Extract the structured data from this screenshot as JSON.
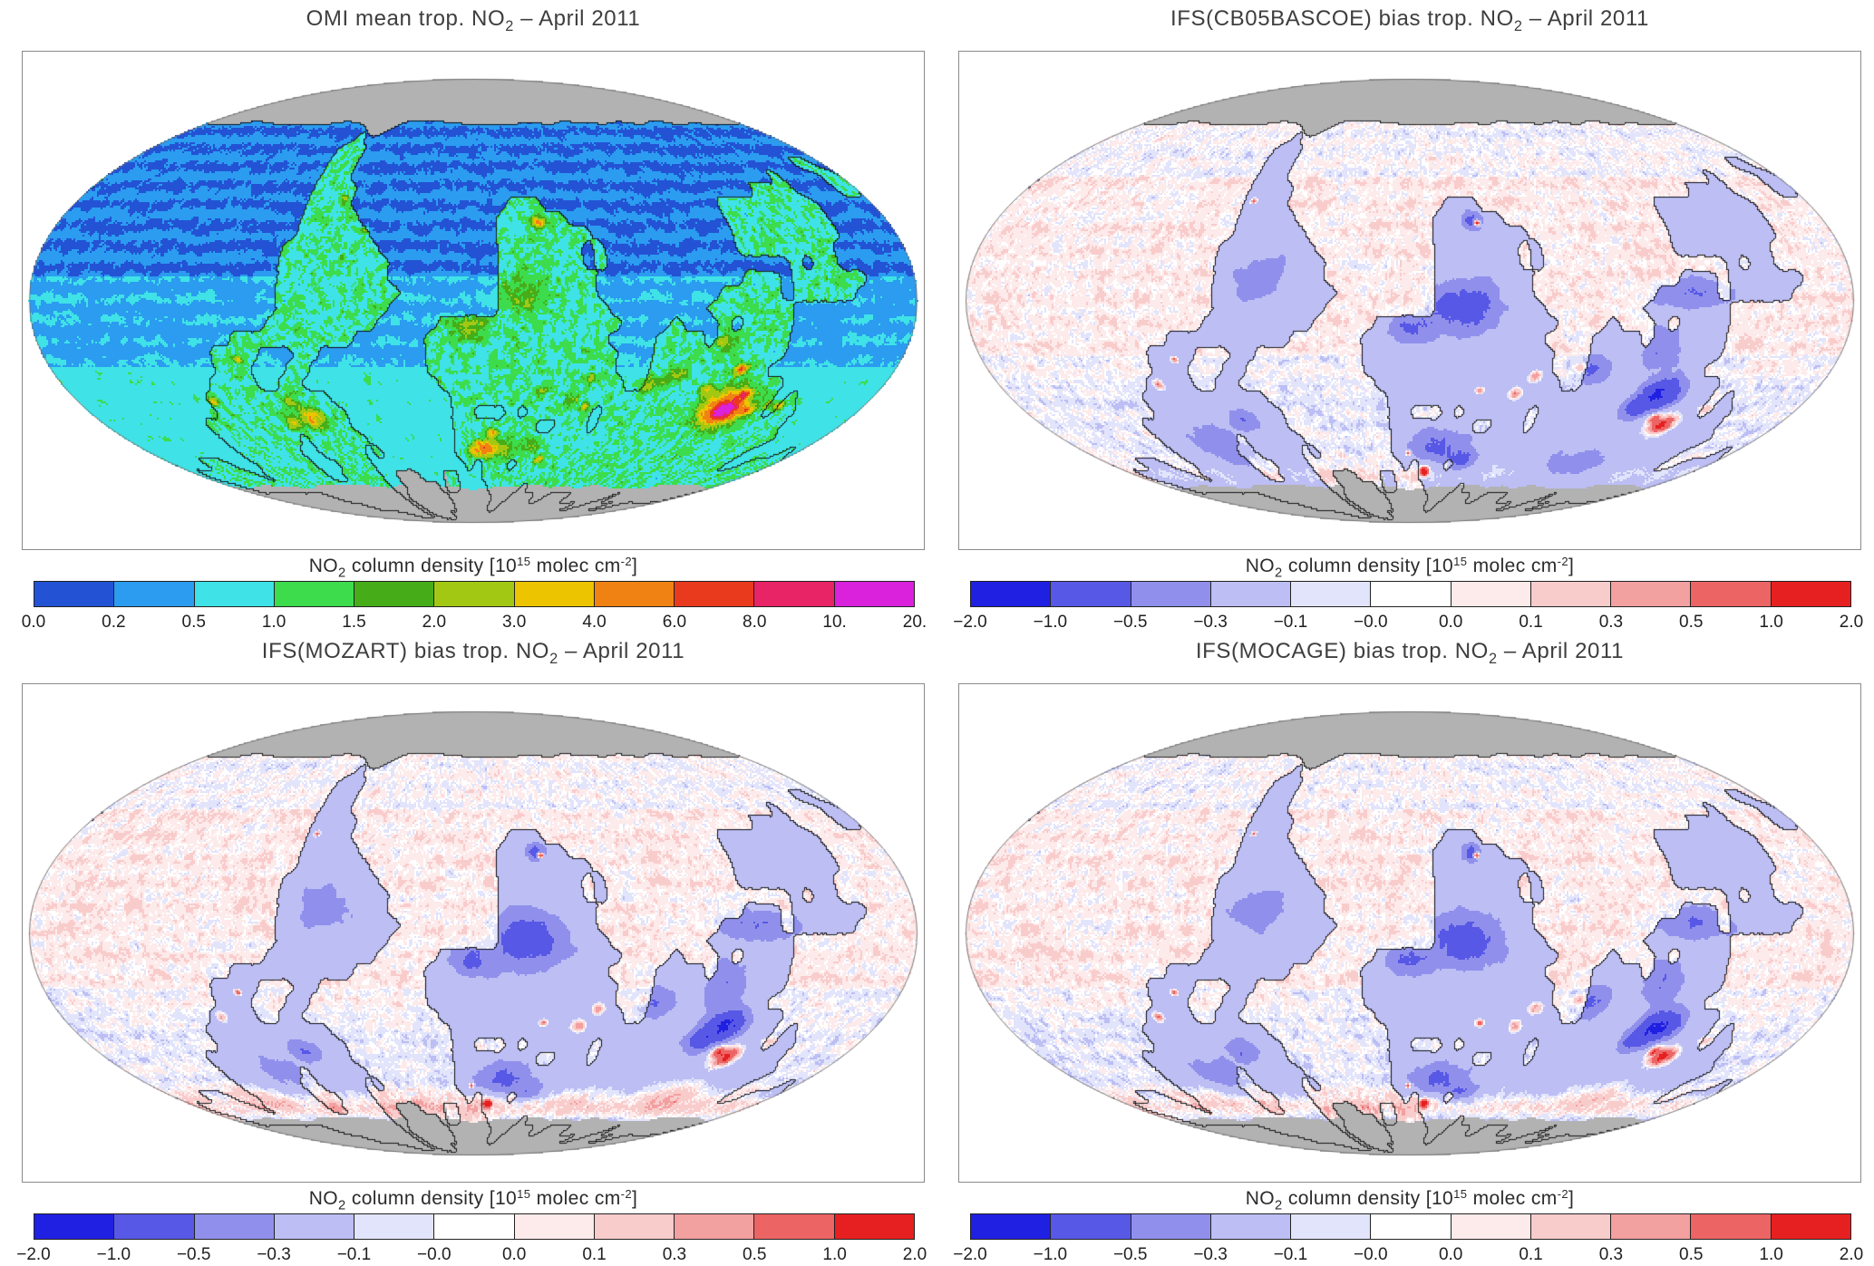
{
  "figure": {
    "background": "#ffffff",
    "nodata_color": "#b2b2b2",
    "coast_color": "#141414",
    "colorbar_label": {
      "pre": "NO",
      "sub": "2",
      "mid": " column density [10",
      "sup": "15",
      "mid2": " molec cm",
      "sup2": "-2",
      "post": "]"
    }
  },
  "panels": [
    {
      "id": "omi",
      "title": {
        "pre": "OMI mean trop. NO",
        "sub": "2",
        "post": " – April 2011"
      },
      "colorbar": {
        "ticks": [
          "0.0",
          "0.2",
          "0.5",
          "1.0",
          "1.5",
          "2.0",
          "3.0",
          "4.0",
          "6.0",
          "8.0",
          "10.",
          "20."
        ],
        "levels": [
          0.0,
          0.2,
          0.5,
          1.0,
          1.5,
          2.0,
          3.0,
          4.0,
          6.0,
          8.0,
          10.0,
          20.0
        ],
        "colors": [
          "#2353d4",
          "#2b9cf0",
          "#3fe2e6",
          "#3cdc4d",
          "#46ad19",
          "#a3c814",
          "#ecc400",
          "#f08214",
          "#ea3a1e",
          "#e82366",
          "#da22dd"
        ]
      },
      "map": {
        "type": "omi"
      }
    },
    {
      "id": "cb05",
      "title": {
        "pre": "IFS(CB05BASCOE) bias trop. NO",
        "sub": "2",
        "post": " – April 2011"
      },
      "colorbar": {
        "ticks": [
          "−2.0",
          "−1.0",
          "−0.5",
          "−0.3",
          "−0.1",
          "−0.0",
          "0.0",
          "0.1",
          "0.3",
          "0.5",
          "1.0",
          "2.0"
        ],
        "levels": [
          -2.0,
          -1.0,
          -0.5,
          -0.3,
          -0.1,
          -0.0,
          0.0,
          0.1,
          0.3,
          0.5,
          1.0,
          2.0
        ],
        "colors": [
          "#2020e2",
          "#5858e6",
          "#9090ec",
          "#bcbef4",
          "#e2e4fb",
          "#ffffff",
          "#fdeaea",
          "#f9cccc",
          "#f3a0a0",
          "#ec6464",
          "#e62020"
        ]
      },
      "map": {
        "type": "bias"
      }
    },
    {
      "id": "mozart",
      "title": {
        "pre": "IFS(MOZART) bias trop. NO",
        "sub": "2",
        "post": " – April 2011"
      },
      "colorbar": {
        "ticks": [
          "−2.0",
          "−1.0",
          "−0.5",
          "−0.3",
          "−0.1",
          "−0.0",
          "0.0",
          "0.1",
          "0.3",
          "0.5",
          "1.0",
          "2.0"
        ],
        "levels": [
          -2.0,
          -1.0,
          -0.5,
          -0.3,
          -0.1,
          -0.0,
          0.0,
          0.1,
          0.3,
          0.5,
          1.0,
          2.0
        ],
        "colors": [
          "#2020e2",
          "#5858e6",
          "#9090ec",
          "#bcbef4",
          "#e2e4fb",
          "#ffffff",
          "#fdeaea",
          "#f9cccc",
          "#f3a0a0",
          "#ec6464",
          "#e62020"
        ]
      },
      "map": {
        "type": "bias"
      }
    },
    {
      "id": "mocage",
      "title": {
        "pre": "IFS(MOCAGE) bias trop. NO",
        "sub": "2",
        "post": " – April 2011"
      },
      "colorbar": {
        "ticks": [
          "−2.0",
          "−1.0",
          "−0.5",
          "−0.3",
          "−0.1",
          "−0.0",
          "0.0",
          "0.1",
          "0.3",
          "0.5",
          "1.0",
          "2.0"
        ],
        "levels": [
          -2.0,
          -1.0,
          -0.5,
          -0.3,
          -0.1,
          -0.0,
          0.0,
          0.1,
          0.3,
          0.5,
          1.0,
          2.0
        ],
        "colors": [
          "#2020e2",
          "#5858e6",
          "#9090ec",
          "#bcbef4",
          "#e2e4fb",
          "#ffffff",
          "#fdeaea",
          "#f9cccc",
          "#f3a0a0",
          "#ec6464",
          "#e62020"
        ]
      },
      "map": {
        "type": "bias"
      }
    }
  ],
  "chart_data": [
    {
      "type": "heatmap",
      "chart": "global map, Mollweide projection",
      "title": "OMI mean trop. NO2 – April 2011",
      "variable": "NO2 tropospheric column density",
      "units": "10^15 molec cm^-2",
      "levels": [
        0.0,
        0.2,
        0.5,
        1.0,
        1.5,
        2.0,
        3.0,
        4.0,
        6.0,
        8.0,
        10.0,
        20.0
      ],
      "palette": [
        "#2353d4",
        "#2b9cf0",
        "#3fe2e6",
        "#3cdc4d",
        "#46ad19",
        "#a3c814",
        "#ecc400",
        "#f08214",
        "#ea3a1e",
        "#e82366",
        "#da22dd"
      ],
      "no_data_color": "#b2b2b2",
      "legend_position": "bottom",
      "notable_features": [
        "maximum values >10 over eastern China (Beijing–Shanghai region)",
        "elevated values 2–6 over western/central Europe, eastern USA, South Korea and Japan",
        "enhanced values 1–3 over central/western Africa, northern India, Middle East and South African Highveld",
        "background oceans 0.0–1.0, lowest (<0.2) over Southern Hemisphere oceans",
        "gray = no data over the Arctic cap, Greenland and Antarctica"
      ]
    },
    {
      "type": "heatmap",
      "chart": "global map, Mollweide projection",
      "title": "IFS(CB05BASCOE) bias trop. NO2 – April 2011",
      "variable": "model minus OMI NO2 tropospheric column bias",
      "units": "10^15 molec cm^-2",
      "levels": [
        -2.0,
        -1.0,
        -0.5,
        -0.3,
        -0.1,
        -0.0,
        0.0,
        0.1,
        0.3,
        0.5,
        1.0,
        2.0
      ],
      "palette": [
        "#2020e2",
        "#5858e6",
        "#9090ec",
        "#bcbef4",
        "#e2e4fb",
        "#ffffff",
        "#fdeaea",
        "#f9cccc",
        "#f3a0a0",
        "#ec6464",
        "#e62020"
      ],
      "no_data_color": "#b2b2b2",
      "legend_position": "bottom",
      "notable_features": [
        "predominantly negative bias (blue) over central Africa, Europe, India, Southeast Asia and China",
        "strong positive bias (red) spots over southern Norway, northeastern China and Middle East cities",
        "near-zero bias (white) over most oceans with weak positive (pink) patches in the tropics"
      ]
    },
    {
      "type": "heatmap",
      "chart": "global map, Mollweide projection",
      "title": "IFS(MOZART) bias trop. NO2 – April 2011",
      "variable": "model minus OMI NO2 tropospheric column bias",
      "units": "10^15 molec cm^-2",
      "levels": [
        -2.0,
        -1.0,
        -0.5,
        -0.3,
        -0.1,
        -0.0,
        0.0,
        0.1,
        0.3,
        0.5,
        1.0,
        2.0
      ],
      "palette": [
        "#2020e2",
        "#5858e6",
        "#9090ec",
        "#bcbef4",
        "#e2e4fb",
        "#ffffff",
        "#fdeaea",
        "#f9cccc",
        "#f3a0a0",
        "#ec6464",
        "#e62020"
      ],
      "no_data_color": "#b2b2b2",
      "legend_position": "bottom",
      "notable_features": [
        "negative bias (blue) over central Africa, Europe and eastern China",
        "positive bias (red/pink) band across high northern latitudes (Siberia, northern Canada, Scandinavia)",
        "strong red spot over southern Norway and northeastern China",
        "near-zero bias over most oceans"
      ]
    },
    {
      "type": "heatmap",
      "chart": "global map, Mollweide projection",
      "title": "IFS(MOCAGE) bias trop. NO2 – April 2011",
      "variable": "model minus OMI NO2 tropospheric column bias",
      "units": "10^15 molec cm^-2",
      "levels": [
        -2.0,
        -1.0,
        -0.5,
        -0.3,
        -0.1,
        -0.0,
        0.0,
        0.1,
        0.3,
        0.5,
        1.0,
        2.0
      ],
      "palette": [
        "#2020e2",
        "#5858e6",
        "#9090ec",
        "#bcbef4",
        "#e2e4fb",
        "#ffffff",
        "#fdeaea",
        "#f9cccc",
        "#f3a0a0",
        "#ec6464",
        "#e62020"
      ],
      "no_data_color": "#b2b2b2",
      "legend_position": "bottom",
      "notable_features": [
        "negative bias (blue) over central Africa, Europe, India and eastern China",
        "positive bias (red/pink) over high northern latitudes and northeastern China",
        "strong red spot over southern Norway",
        "near-zero bias over most oceans"
      ]
    }
  ]
}
